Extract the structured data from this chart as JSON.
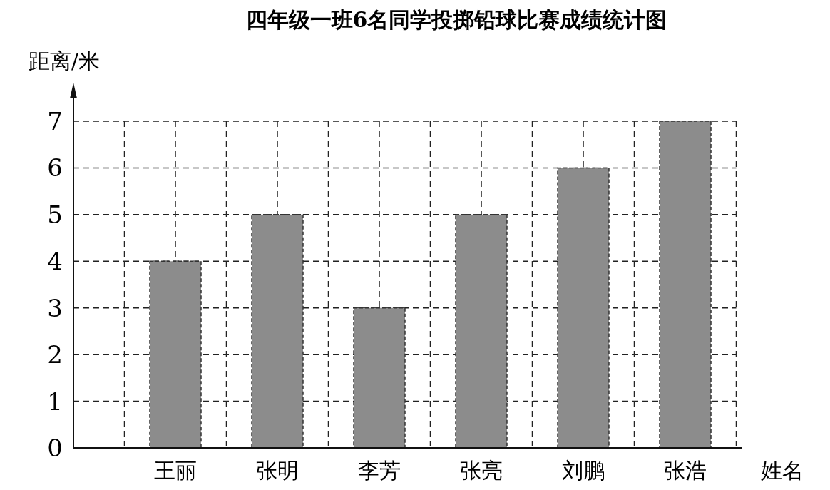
{
  "chart_data": {
    "type": "bar",
    "title": "四年级一班6名同学投掷铅球比赛成绩统计图",
    "xlabel": "姓名",
    "ylabel": "距离/米",
    "categories": [
      "王丽",
      "张明",
      "李芳",
      "张亮",
      "刘鹏",
      "张浩"
    ],
    "values": [
      4,
      5,
      3,
      5,
      6,
      7
    ],
    "color": "#8c8c8c",
    "ylim": [
      0,
      7
    ],
    "yticks": [
      0,
      1,
      2,
      3,
      4,
      5,
      6,
      7
    ],
    "grid": true
  }
}
